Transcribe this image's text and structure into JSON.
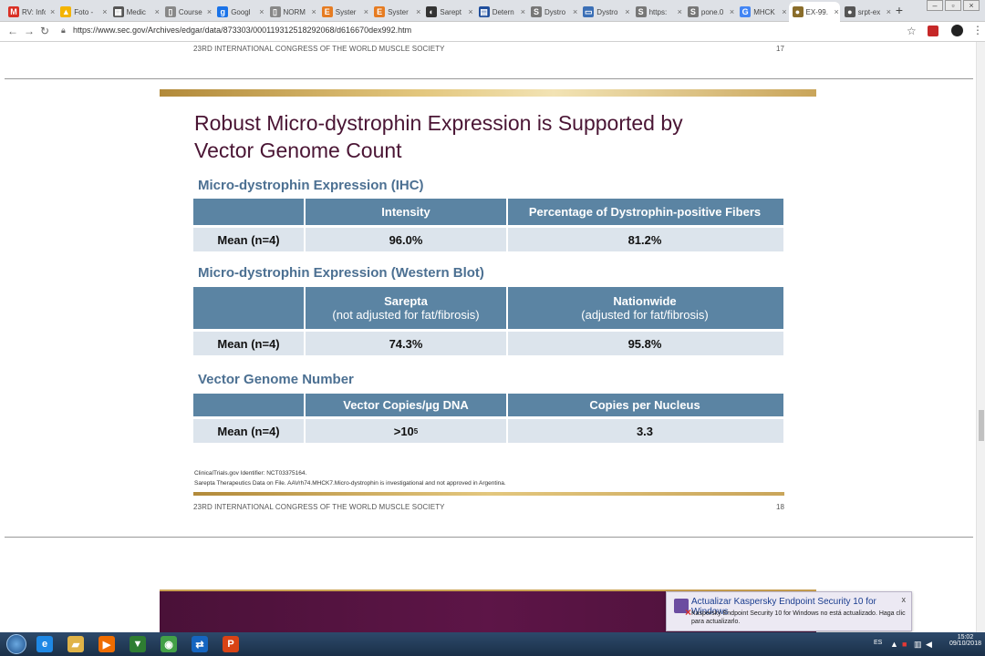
{
  "browser": {
    "tabs": [
      {
        "label": "RV: Info",
        "fav": "M",
        "color": "#d93025"
      },
      {
        "label": "Foto -",
        "fav": "▲",
        "color": "#f4b400"
      },
      {
        "label": "Medic",
        "fav": "▦",
        "color": "#555555"
      },
      {
        "label": "Course",
        "fav": "▯",
        "color": "#888888"
      },
      {
        "label": "Googl",
        "fav": "g",
        "color": "#1a73e8"
      },
      {
        "label": "NORM",
        "fav": "▯",
        "color": "#888888"
      },
      {
        "label": "Syster",
        "fav": "E",
        "color": "#e67c22"
      },
      {
        "label": "Syster",
        "fav": "E",
        "color": "#e67c22"
      },
      {
        "label": "Sarept",
        "fav": "◐",
        "color": "#333333"
      },
      {
        "label": "Detern",
        "fav": "▤",
        "color": "#1f4e9c"
      },
      {
        "label": "Dystro",
        "fav": "S",
        "color": "#777777"
      },
      {
        "label": "Dystro",
        "fav": "▭",
        "color": "#3b6fb6"
      },
      {
        "label": "https:",
        "fav": "S",
        "color": "#777777"
      },
      {
        "label": "pone.0",
        "fav": "S",
        "color": "#777777"
      },
      {
        "label": "MHCK",
        "fav": "G",
        "color": "#4285f4"
      },
      {
        "label": "EX-99.",
        "fav": "●",
        "color": "#8a6d2a",
        "active": true
      },
      {
        "label": "srpt-ex",
        "fav": "●",
        "color": "#555555"
      }
    ],
    "url": "https://www.sec.gov/Archives/edgar/data/873303/000119312518292068/d616670dex992.htm"
  },
  "prev_slide": {
    "footer": "23RD INTERNATIONAL CONGRESS OF THE WORLD MUSCLE SOCIETY",
    "page": "17"
  },
  "slide": {
    "title": "Robust Micro-dystrophin Expression is Supported by Vector Genome Count",
    "sections": [
      {
        "title": "Micro-dystrophin Expression (IHC)",
        "headers": [
          {
            "main": "",
            "sub": ""
          },
          {
            "main": "Intensity",
            "sub": ""
          },
          {
            "main": "Percentage of Dystrophin-positive Fibers",
            "sub": ""
          }
        ],
        "row": {
          "label": "Mean (n=4)",
          "v1": "96.0%",
          "v2": "81.2%"
        }
      },
      {
        "title": "Micro-dystrophin Expression (Western Blot)",
        "headers": [
          {
            "main": "",
            "sub": ""
          },
          {
            "main": "Sarepta",
            "sub": "(not adjusted for fat/fibrosis)"
          },
          {
            "main": "Nationwide",
            "sub": "(adjusted for fat/fibrosis)"
          }
        ],
        "row": {
          "label": "Mean (n=4)",
          "v1": "74.3%",
          "v2": "95.8%"
        }
      },
      {
        "title": "Vector Genome Number",
        "headers": [
          {
            "main": "",
            "sub": ""
          },
          {
            "main": "Vector Copies/µg DNA",
            "sub": ""
          },
          {
            "main": "Copies per Nucleus",
            "sub": ""
          }
        ],
        "row": {
          "label": "Mean (n=4)",
          "v1_base": ">10",
          "v1_exp": "5",
          "v2": "3.3"
        }
      }
    ],
    "notes": [
      "ClinicalTrials.gov Identifier: NCT03375164.",
      "Sarepta Therapeutics Data on File. AAVrh74.MHCK7.Micro-dystrophin is investigational and not approved in Argentina."
    ],
    "footer": "23RD INTERNATIONAL CONGRESS OF THE WORLD MUSCLE SOCIETY",
    "page": "18"
  },
  "toast": {
    "title": "Actualizar Kaspersky Endpoint Security 10 for Windows",
    "body": "Kaspersky Endpoint Security 10 for Windows no está actualizado. Haga clic para actualizarlo.",
    "close": "x"
  },
  "taskbar": {
    "apps": [
      {
        "name": "ie",
        "fav": "e",
        "color": "#1e88e5"
      },
      {
        "name": "explorer",
        "fav": "▰",
        "color": "#e0b347"
      },
      {
        "name": "media",
        "fav": "▶",
        "color": "#ef6c00"
      },
      {
        "name": "app",
        "fav": "▼",
        "color": "#2e7d32"
      },
      {
        "name": "chrome",
        "fav": "◉",
        "color": "#43a047"
      },
      {
        "name": "teamviewer",
        "fav": "⇄",
        "color": "#1565c0"
      },
      {
        "name": "powerpoint",
        "fav": "P",
        "color": "#d84315"
      }
    ],
    "lang": "ES",
    "time": "15:02",
    "date": "09/10/2018"
  }
}
